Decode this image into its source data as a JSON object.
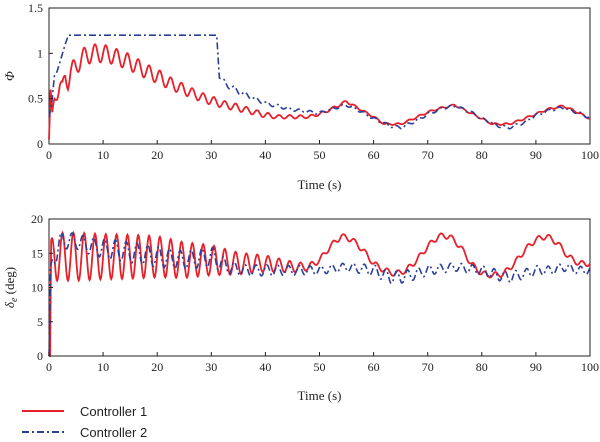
{
  "chart_data": [
    {
      "type": "line",
      "xlabel": "Time (s)",
      "ylabel": "Φ",
      "xlim": [
        0,
        100
      ],
      "ylim": [
        0,
        1.5
      ],
      "xticks": [
        0,
        10,
        20,
        30,
        40,
        50,
        60,
        70,
        80,
        90,
        100
      ],
      "yticks": [
        0,
        0.5,
        1,
        1.5
      ],
      "ytick_labels": [
        "0",
        "0.5",
        "1",
        "1.5"
      ],
      "grid": false,
      "series": [
        {
          "name": "Controller 1",
          "color": "#e8202a",
          "style": "solid",
          "x": [
            0,
            0.3,
            0.6,
            1,
            1.5,
            2,
            2.5,
            3,
            3.5,
            4,
            5,
            6,
            8,
            10,
            12,
            15,
            18,
            20,
            22,
            25,
            28,
            30,
            32,
            35,
            38,
            40,
            42,
            45,
            48,
            50,
            52,
            55,
            57,
            60,
            62,
            65,
            67,
            70,
            72,
            75,
            77,
            80,
            82,
            85,
            87,
            90,
            92,
            95,
            97,
            100
          ],
          "y": [
            0.05,
            0.6,
            0.35,
            0.5,
            0.55,
            0.65,
            0.6,
            0.75,
            0.7,
            0.8,
            0.85,
            0.95,
            1.0,
            1.0,
            0.97,
            0.9,
            0.8,
            0.75,
            0.68,
            0.6,
            0.52,
            0.48,
            0.44,
            0.4,
            0.35,
            0.32,
            0.3,
            0.3,
            0.3,
            0.33,
            0.38,
            0.47,
            0.4,
            0.3,
            0.22,
            0.22,
            0.27,
            0.35,
            0.39,
            0.43,
            0.37,
            0.28,
            0.22,
            0.22,
            0.26,
            0.33,
            0.38,
            0.42,
            0.37,
            0.28
          ],
          "oscillation_amplitude": [
            0,
            0,
            0,
            0.05,
            0.06,
            0.08,
            0.09,
            0.1,
            0.1,
            0.1,
            0.1,
            0.1,
            0.1,
            0.1,
            0.09,
            0.09,
            0.08,
            0.08,
            0.07,
            0.06,
            0.05,
            0.05,
            0.04,
            0.04,
            0.03,
            0.03,
            0.02,
            0.02,
            0.015,
            0.015,
            0.015,
            0.015,
            0.01,
            0.01,
            0.01,
            0.01,
            0.01,
            0.01,
            0.01,
            0.01,
            0.01,
            0.01,
            0.01,
            0.01,
            0.01,
            0.01,
            0.01,
            0.01,
            0.01,
            0.01
          ]
        },
        {
          "name": "Controller 2",
          "color": "#2b3f9c",
          "style": "dashdot",
          "x": [
            0,
            0.5,
            1,
            1.5,
            2,
            3,
            3.6,
            4,
            31,
            31.5,
            32,
            33,
            35,
            38,
            40,
            45,
            50,
            53,
            55,
            57,
            60,
            63,
            65,
            68,
            70,
            73,
            75,
            78,
            80,
            83,
            85,
            88,
            90,
            93,
            95,
            98,
            100
          ],
          "y": [
            0.3,
            0.45,
            0.75,
            0.8,
            0.9,
            1.1,
            1.2,
            1.2,
            1.2,
            0.75,
            0.7,
            0.65,
            0.58,
            0.5,
            0.45,
            0.38,
            0.34,
            0.4,
            0.43,
            0.38,
            0.28,
            0.2,
            0.18,
            0.26,
            0.33,
            0.4,
            0.42,
            0.35,
            0.28,
            0.2,
            0.18,
            0.24,
            0.32,
            0.38,
            0.4,
            0.34,
            0.29
          ],
          "oscillation_amplitude": [
            0,
            0,
            0,
            0,
            0,
            0,
            0,
            0,
            0,
            0.03,
            0.03,
            0.03,
            0.03,
            0.02,
            0.02,
            0.015,
            0.015,
            0.015,
            0.015,
            0.015,
            0.015,
            0.015,
            0.015,
            0.015,
            0.015,
            0.015,
            0.015,
            0.015,
            0.015,
            0.015,
            0.015,
            0.015,
            0.015,
            0.015,
            0.015,
            0.015,
            0.015
          ]
        }
      ]
    },
    {
      "type": "line",
      "xlabel": "Time (s)",
      "ylabel": "δe (deg)",
      "ylabel_main": "δ",
      "ylabel_sub": "e",
      "ylabel_unit": " (deg)",
      "xlim": [
        0,
        100
      ],
      "ylim": [
        0,
        20
      ],
      "xticks": [
        0,
        10,
        20,
        30,
        40,
        50,
        60,
        70,
        80,
        90,
        100
      ],
      "yticks": [
        0,
        5,
        10,
        15,
        20
      ],
      "ytick_labels": [
        "0",
        "5",
        "10",
        "15",
        "20"
      ],
      "grid": false,
      "series": [
        {
          "name": "Controller 1",
          "color": "#e8202a",
          "style": "solid",
          "x": [
            0,
            0.2,
            0.4,
            1,
            5,
            10,
            15,
            20,
            25,
            30,
            35,
            40,
            45,
            48,
            50,
            52,
            54,
            56,
            58,
            60,
            62,
            64,
            66,
            68,
            70,
            72,
            74,
            76,
            78,
            80,
            82,
            84,
            86,
            88,
            90,
            92,
            94,
            96,
            98,
            100
          ],
          "y": [
            0,
            0,
            14,
            14.5,
            14.5,
            14.5,
            14.5,
            14.5,
            14,
            14,
            13.5,
            13.5,
            13,
            13,
            14,
            16,
            17.5,
            17,
            15.5,
            13.5,
            12.5,
            12,
            12.5,
            14,
            16,
            17.5,
            17.5,
            16,
            13.5,
            12,
            11.8,
            12,
            13.5,
            15.5,
            17,
            17.5,
            16.5,
            14.5,
            13.5,
            13.5
          ],
          "oscillation_amplitude": [
            0,
            0,
            3,
            3.5,
            3.5,
            3.3,
            3.2,
            3.0,
            2.6,
            2.2,
            1.6,
            1.2,
            0.8,
            0.5,
            0.4,
            0.4,
            0.4,
            0.4,
            0.4,
            0.4,
            0.4,
            0.4,
            0.4,
            0.4,
            0.4,
            0.4,
            0.4,
            0.4,
            0.4,
            0.4,
            0.4,
            0.4,
            0.4,
            0.4,
            0.4,
            0.4,
            0.4,
            0.4,
            0.4,
            0.4
          ]
        },
        {
          "name": "Controller 2",
          "color": "#2b3f9c",
          "style": "dashdot",
          "x": [
            0,
            0.3,
            1,
            2,
            4,
            8,
            12,
            16,
            20,
            25,
            30,
            33,
            36,
            40,
            45,
            50,
            55,
            60,
            63,
            65,
            68,
            70,
            75,
            80,
            82,
            85,
            88,
            90,
            93,
            95,
            98,
            100
          ],
          "y": [
            0,
            12,
            15,
            16.5,
            17,
            16,
            15.5,
            15,
            14.5,
            14,
            14.5,
            13,
            12.5,
            12.5,
            12.5,
            12.5,
            13,
            12.5,
            11.5,
            11.5,
            12,
            12.5,
            13,
            12.5,
            12,
            11.5,
            12,
            12.5,
            12.5,
            13,
            12.5,
            12.5
          ],
          "oscillation_amplitude": [
            0,
            1,
            2,
            1.5,
            1,
            1.3,
            1.5,
            1.5,
            1.5,
            1.3,
            1.5,
            1.0,
            0.8,
            0.8,
            0.7,
            0.6,
            0.6,
            0.8,
            0.9,
            0.9,
            0.8,
            0.7,
            0.6,
            0.7,
            0.8,
            0.8,
            0.7,
            0.7,
            0.6,
            0.6,
            0.6,
            0.6
          ]
        }
      ]
    }
  ],
  "legend": {
    "items": [
      {
        "label": "Controller 1",
        "color": "#e8202a",
        "style": "solid"
      },
      {
        "label": "Controller 2",
        "color": "#2b3f9c",
        "style": "dashdot"
      }
    ],
    "placement": "bottom-left"
  }
}
